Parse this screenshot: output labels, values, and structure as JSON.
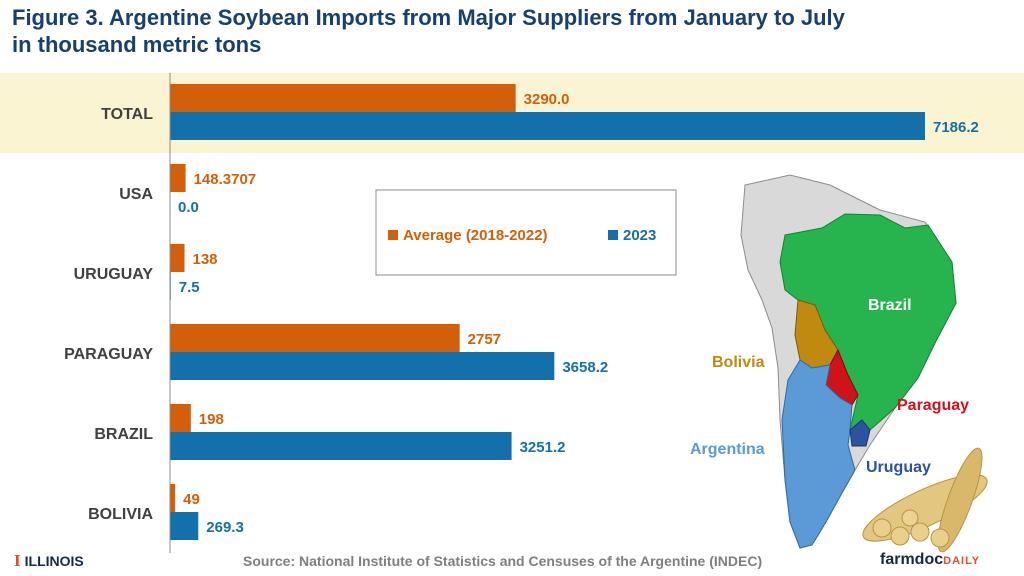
{
  "title_line1": "Figure 3. Argentine Soybean Imports from Major Suppliers from January to July",
  "title_line2": "in thousand metric tons",
  "source": "Source: National Institute of Statistics and Censuses of the Argentine (INDEC)",
  "footer_left": "ILLINOIS",
  "footer_right": "farmdoc",
  "footer_right_suffix": "DAILY",
  "colors": {
    "average": "#d35f0a",
    "y2023": "#1470aa",
    "total_band": "#fbf4d3",
    "title": "#17406d"
  },
  "map_labels": {
    "brazil": "Brazil",
    "bolivia": "Bolivia",
    "paraguay": "Paraguay",
    "argentina": "Argentina",
    "uruguay": "Uruguay"
  },
  "chart_data": {
    "type": "bar",
    "orientation": "horizontal",
    "categories": [
      "TOTAL",
      "USA",
      "URUGUAY",
      "PARAGUAY",
      "BRAZIL",
      "BOLIVIA"
    ],
    "series": [
      {
        "name": "Average (2018-2022)",
        "values": [
          3290.0,
          148.3707,
          138,
          2757,
          198,
          49
        ],
        "labels": [
          "3290.0",
          "148.3707",
          "138",
          "2757",
          "198",
          "49"
        ]
      },
      {
        "name": "2023",
        "values": [
          7186.2,
          0.0,
          7.5,
          3658.2,
          3251.2,
          269.3
        ],
        "labels": [
          "7186.2",
          "0.0",
          "7.5",
          "3658.2",
          "3251.2",
          "269.3"
        ]
      }
    ],
    "highlight_category": "TOTAL",
    "legend_position": "top-center",
    "grid": false
  }
}
